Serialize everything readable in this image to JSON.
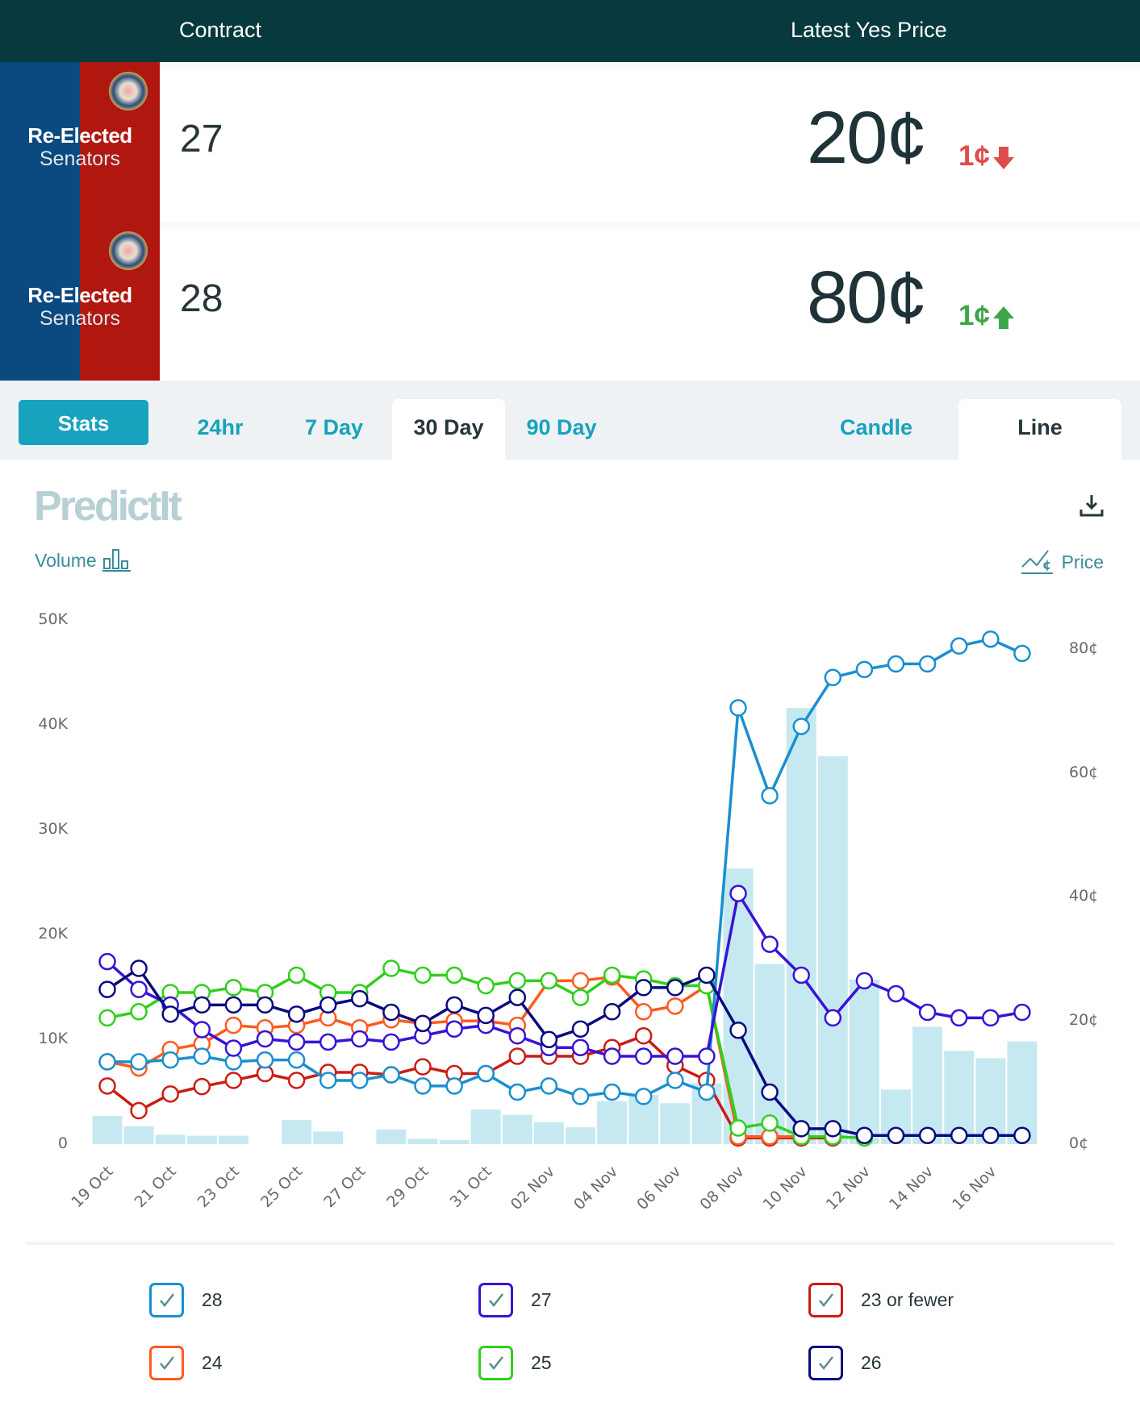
{
  "header": {
    "contract_col": "Contract",
    "price_col": "Latest Yes Price"
  },
  "contracts": [
    {
      "tile_line1": "Re-Elected",
      "tile_line2": "Senators",
      "name": "27",
      "price": "20¢",
      "change": "1¢",
      "direction": "down",
      "arrow_icon": "arrow-down-icon"
    },
    {
      "tile_line1": "Re-Elected",
      "tile_line2": "Senators",
      "name": "28",
      "price": "80¢",
      "change": "1¢",
      "direction": "up",
      "arrow_icon": "arrow-up-icon"
    }
  ],
  "tabs": {
    "stats": "Stats",
    "ranges": [
      "24hr",
      "7 Day",
      "30 Day",
      "90 Day"
    ],
    "active_range": "30 Day",
    "types": [
      "Candle",
      "Line"
    ],
    "active_type": "Line"
  },
  "chart_panel": {
    "logo": "PredictIt",
    "volume_label": "Volume",
    "price_label": "Price",
    "download_icon": "download-icon"
  },
  "colors": {
    "28": "#1a8fd0",
    "27": "#3a12d6",
    "23 or fewer": "#cc1b14",
    "24": "#ff5a1f",
    "25": "#2fd01c",
    "26": "#0a0a80",
    "volume": "#c6e9f1",
    "header_bg": "#08393f",
    "accent": "#17a2bd"
  },
  "legend": [
    {
      "label": "28",
      "checked": true
    },
    {
      "label": "27",
      "checked": true
    },
    {
      "label": "23 or fewer",
      "checked": true
    },
    {
      "label": "24",
      "checked": true
    },
    {
      "label": "25",
      "checked": true
    },
    {
      "label": "26",
      "checked": true
    }
  ],
  "chart_data": {
    "type": "line",
    "title": "",
    "xlabel": "",
    "ylabel_left": "Volume",
    "ylabel_right": "Price",
    "left_axis": {
      "ticks": [
        "0",
        "10K",
        "20K",
        "30K",
        "40K",
        "50K"
      ],
      "range": [
        0,
        50000
      ]
    },
    "right_axis": {
      "ticks": [
        "0¢",
        "20¢",
        "40¢",
        "60¢",
        "80¢"
      ],
      "range": [
        0,
        80
      ]
    },
    "x_tick_labels": [
      "19 Oct",
      "21 Oct",
      "23 Oct",
      "25 Oct",
      "27 Oct",
      "29 Oct",
      "31 Oct",
      "02 Nov",
      "04 Nov",
      "06 Nov",
      "08 Nov",
      "10 Nov",
      "12 Nov",
      "14 Nov",
      "16 Nov"
    ],
    "x": [
      "19 Oct",
      "20 Oct",
      "21 Oct",
      "22 Oct",
      "23 Oct",
      "24 Oct",
      "25 Oct",
      "26 Oct",
      "27 Oct",
      "28 Oct",
      "29 Oct",
      "30 Oct",
      "31 Oct",
      "01 Nov",
      "02 Nov",
      "03 Nov",
      "04 Nov",
      "05 Nov",
      "06 Nov",
      "07 Nov",
      "08 Nov",
      "09 Nov",
      "10 Nov",
      "11 Nov",
      "12 Nov",
      "13 Nov",
      "14 Nov",
      "15 Nov",
      "16 Nov",
      "17 Nov"
    ],
    "volume": [
      2700,
      1700,
      900,
      800,
      800,
      0,
      2300,
      1200,
      0,
      1400,
      500,
      400,
      3300,
      2800,
      2100,
      1600,
      4100,
      4700,
      3900,
      5800,
      26300,
      17200,
      41600,
      37000,
      15700,
      5200,
      11200,
      8900,
      8200,
      9800
    ],
    "series": [
      {
        "name": "28",
        "values": [
          13.3,
          13.3,
          13.6,
          14.2,
          13.3,
          13.6,
          13.6,
          10.3,
          10.3,
          11.2,
          9.4,
          9.4,
          11.4,
          8.4,
          9.4,
          7.7,
          8.4,
          7.7,
          10.3,
          8.4,
          70.5,
          56.3,
          67.5,
          75.4,
          76.7,
          77.6,
          77.6,
          80.5,
          81.6,
          79.3
        ]
      },
      {
        "name": "27",
        "values": [
          29.5,
          25,
          22.5,
          18.5,
          15.5,
          17,
          16.5,
          16.5,
          17,
          16.5,
          17.5,
          18.6,
          19.2,
          17.5,
          15.6,
          15.6,
          14.2,
          14.2,
          14.2,
          14.2,
          40.5,
          32.3,
          27.3,
          20.4,
          26.4,
          24.3,
          21.3,
          20.4,
          20.4,
          21.3
        ]
      },
      {
        "name": "23 or fewer",
        "values": [
          9.4,
          5.4,
          8.1,
          9.3,
          10.3,
          11.4,
          10.3,
          11.6,
          11.6,
          11.2,
          12.5,
          11.4,
          11.4,
          14.2,
          14.2,
          14.2,
          15.6,
          17.5,
          12.7,
          10.3,
          1,
          1,
          1,
          1
        ]
      },
      {
        "name": "24",
        "values": [
          13.3,
          12.3,
          15.3,
          16.2,
          19.2,
          18.8,
          19.2,
          20.4,
          18.8,
          20.1,
          19.5,
          19.9,
          19.9,
          19.2,
          26.4,
          26.4,
          27,
          21.4,
          22.3,
          25.6,
          1.2,
          1.2,
          1.2,
          1.2
        ]
      },
      {
        "name": "25",
        "values": [
          20.4,
          21.4,
          24.5,
          24.5,
          25.3,
          24.5,
          27.3,
          24.5,
          24.5,
          28.4,
          27.3,
          27.3,
          25.6,
          26.4,
          26.4,
          23.7,
          27.3,
          26.7,
          25.6,
          25.6,
          2.6,
          3.4,
          1.2,
          1.2,
          1
        ]
      },
      {
        "name": "26",
        "values": [
          25,
          28.4,
          21,
          22.5,
          22.5,
          22.5,
          21,
          22.5,
          23.5,
          21.3,
          19.5,
          22.5,
          20.8,
          23.7,
          16.9,
          18.6,
          21.4,
          25.3,
          25.3,
          27.3,
          18.4,
          8.4,
          2.5,
          2.5,
          1.4,
          1.4,
          1.4,
          1.4,
          1.4,
          1.4
        ]
      }
    ],
    "grid": false,
    "legend_position": "bottom"
  }
}
